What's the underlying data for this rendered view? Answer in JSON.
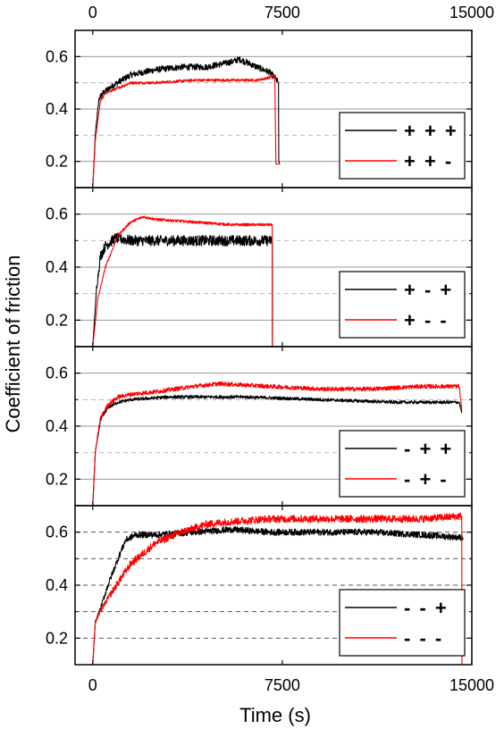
{
  "chart_data": {
    "type": "line",
    "xlabel": "Time (s)",
    "ylabel": "Coefficient of friction",
    "x_ticks": [
      "0",
      "7500",
      "15000"
    ],
    "top_x_ticks": [
      "0",
      "7500",
      "15000"
    ],
    "xlim": [
      -700,
      15000
    ],
    "ylim": [
      0.1,
      0.7
    ],
    "y_ticks": [
      "0.2",
      "0.4",
      "0.6"
    ],
    "grid": "horizontal",
    "legend_position": "lower-right",
    "colors": {
      "black": "#000000",
      "red": "#ff0000"
    },
    "panels": [
      {
        "grid_solid": [
          0.2,
          0.4,
          0.6
        ],
        "grid_dashed": [
          0.3,
          0.5
        ],
        "series": [
          {
            "name": "+ + +",
            "color": "#000000",
            "noise": 0.012,
            "x": [
              0,
              100,
              250,
              400,
              800,
              1500,
              2500,
              3500,
              4500,
              5500,
              5800,
              6500,
              7000,
              7200,
              7350,
              7360,
              7400
            ],
            "y": [
              0.1,
              0.3,
              0.44,
              0.46,
              0.49,
              0.53,
              0.55,
              0.56,
              0.56,
              0.58,
              0.59,
              0.56,
              0.54,
              0.52,
              0.5,
              0.2,
              0.19
            ]
          },
          {
            "name": "+ + -",
            "color": "#ff0000",
            "noise": 0.005,
            "x": [
              0,
              100,
              300,
              500,
              1000,
              1500,
              2500,
              4000,
              5500,
              6500,
              7000,
              7200,
              7250,
              7400
            ],
            "y": [
              0.1,
              0.28,
              0.43,
              0.46,
              0.48,
              0.5,
              0.5,
              0.51,
              0.51,
              0.51,
              0.52,
              0.53,
              0.19,
              0.19
            ]
          }
        ]
      },
      {
        "grid_solid": [
          0.2,
          0.4,
          0.6
        ],
        "grid_dashed": [
          0.3,
          0.5
        ],
        "series": [
          {
            "name": "+ - +",
            "color": "#000000",
            "noise": 0.02,
            "x": [
              0,
              150,
              300,
              500,
              900,
              1500,
              3000,
              5000,
              6500,
              7000,
              7100,
              7110
            ],
            "y": [
              0.1,
              0.32,
              0.44,
              0.48,
              0.51,
              0.5,
              0.5,
              0.5,
              0.5,
              0.5,
              0.5,
              0.1
            ]
          },
          {
            "name": "+ - -",
            "color": "#ff0000",
            "noise": 0.005,
            "x": [
              0,
              200,
              500,
              1000,
              1500,
              2000,
              2500,
              4000,
              5500,
              7000,
              7100,
              7110
            ],
            "y": [
              0.1,
              0.28,
              0.4,
              0.52,
              0.57,
              0.59,
              0.58,
              0.57,
              0.56,
              0.56,
              0.56,
              0.1
            ]
          }
        ]
      },
      {
        "grid_solid": [
          0.2,
          0.4,
          0.6
        ],
        "grid_dashed": [
          0.3,
          0.5
        ],
        "series": [
          {
            "name": "- + +",
            "color": "#000000",
            "noise": 0.006,
            "x": [
              0,
              100,
              300,
              600,
              1000,
              1500,
              3000,
              6000,
              9000,
              12000,
              14500,
              14600
            ],
            "y": [
              0.1,
              0.3,
              0.42,
              0.47,
              0.49,
              0.5,
              0.51,
              0.51,
              0.5,
              0.49,
              0.49,
              0.45
            ]
          },
          {
            "name": "- + -",
            "color": "#ff0000",
            "noise": 0.008,
            "x": [
              0,
              100,
              300,
              600,
              1000,
              1500,
              2500,
              4000,
              5000,
              7000,
              9000,
              11000,
              13000,
              14500,
              14600
            ],
            "y": [
              0.1,
              0.3,
              0.43,
              0.48,
              0.51,
              0.52,
              0.53,
              0.55,
              0.56,
              0.55,
              0.54,
              0.54,
              0.55,
              0.55,
              0.46
            ]
          }
        ]
      },
      {
        "grid_solid": [],
        "grid_dashed": [
          0.2,
          0.3,
          0.4,
          0.5,
          0.6
        ],
        "series": [
          {
            "name": "- - +",
            "color": "#000000",
            "noise": 0.012,
            "x": [
              0,
              100,
              300,
              600,
              1000,
              1300,
              1700,
              2500,
              4000,
              5500,
              7000,
              9000,
              11000,
              13000,
              14600,
              14650
            ],
            "y": [
              0.1,
              0.26,
              0.31,
              0.4,
              0.5,
              0.57,
              0.59,
              0.59,
              0.6,
              0.61,
              0.6,
              0.6,
              0.6,
              0.59,
              0.58,
              0.58
            ]
          },
          {
            "name": "- - -",
            "color": "#ff0000",
            "noise": 0.014,
            "x": [
              0,
              100,
              300,
              600,
              1000,
              1500,
              2500,
              3500,
              4500,
              5500,
              7000,
              9000,
              11000,
              13000,
              14500,
              14600,
              14610
            ],
            "y": [
              0.1,
              0.26,
              0.3,
              0.35,
              0.41,
              0.48,
              0.56,
              0.6,
              0.63,
              0.64,
              0.65,
              0.65,
              0.65,
              0.65,
              0.66,
              0.66,
              0.1
            ]
          }
        ]
      }
    ]
  }
}
